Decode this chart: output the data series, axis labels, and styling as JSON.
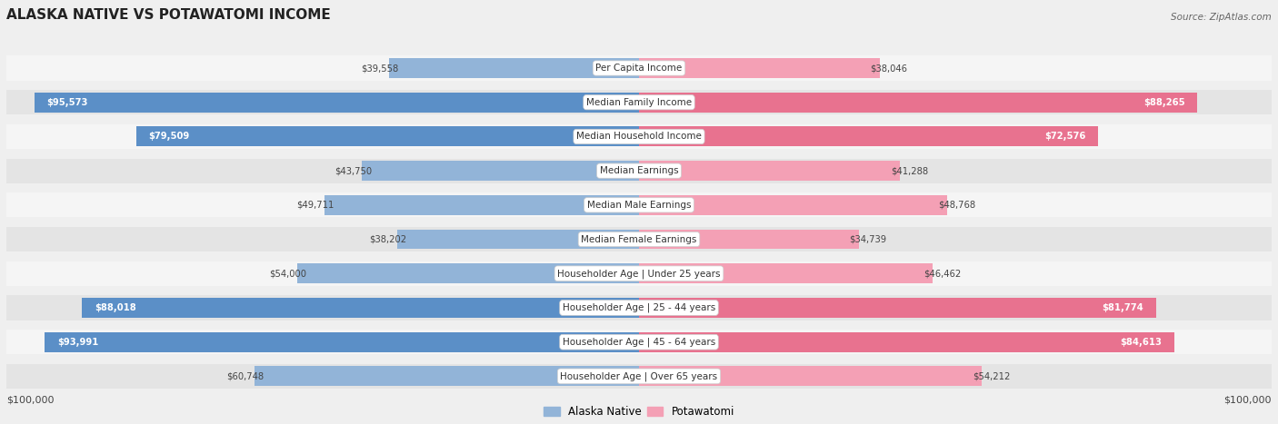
{
  "title": "ALASKA NATIVE VS POTAWATOMI INCOME",
  "source": "Source: ZipAtlas.com",
  "categories": [
    "Per Capita Income",
    "Median Family Income",
    "Median Household Income",
    "Median Earnings",
    "Median Male Earnings",
    "Median Female Earnings",
    "Householder Age | Under 25 years",
    "Householder Age | 25 - 44 years",
    "Householder Age | 45 - 64 years",
    "Householder Age | Over 65 years"
  ],
  "alaska_native": [
    39558,
    95573,
    79509,
    43750,
    49711,
    38202,
    54000,
    88018,
    93991,
    60748
  ],
  "potawatomi": [
    38046,
    88265,
    72576,
    41288,
    48768,
    34739,
    46462,
    81774,
    84613,
    54212
  ],
  "alaska_color": "#92b4d8",
  "alaska_color_dark": "#5b8fc7",
  "potawatomi_color": "#f4a0b5",
  "potawatomi_color_dark": "#e8728f",
  "max_value": 100000,
  "background_color": "#efefef",
  "row_bg_even": "#f5f5f5",
  "row_bg_odd": "#e4e4e4",
  "xlabel_left": "$100,000",
  "xlabel_right": "$100,000",
  "legend_alaska": "Alaska Native",
  "legend_potawatomi": "Potawatomi",
  "alaska_dark_threshold": 79000,
  "potawatomi_dark_threshold": 72000
}
